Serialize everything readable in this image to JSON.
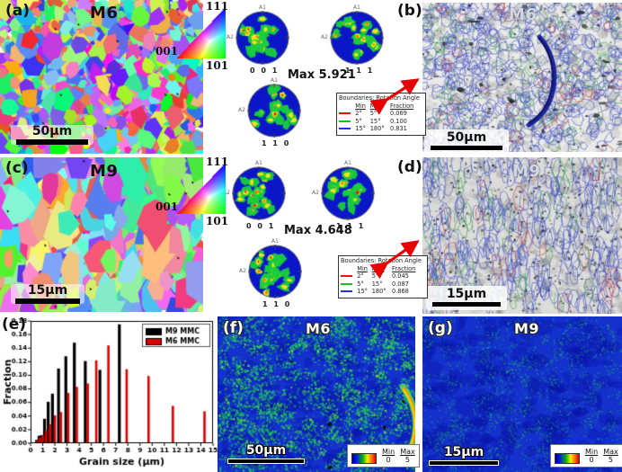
{
  "figure": {
    "panels": {
      "a": {
        "tag": "(a)",
        "sample": "M6",
        "scalebar": "50μm",
        "ipf_triangle": {
          "corner_111": "111",
          "corner_001": "001",
          "corner_101": "101"
        }
      },
      "b": {
        "tag": "(b)",
        "sample": "M6",
        "scalebar": "50μm"
      },
      "c": {
        "tag": "(c)",
        "sample": "M9",
        "scalebar": "15μm",
        "ipf_triangle": {
          "corner_111": "111",
          "corner_001": "001",
          "corner_101": "101"
        }
      },
      "d": {
        "tag": "(d)",
        "sample": "M9",
        "scalebar": "15μm"
      },
      "e": {
        "tag": "(e)"
      },
      "f": {
        "tag": "(f)",
        "sample": "M6",
        "scalebar": "50μm",
        "colorbar": {
          "min_label": "Min",
          "min_value": "0",
          "max_label": "Max",
          "max_value": "5"
        }
      },
      "g": {
        "tag": "(g)",
        "sample": "M9",
        "scalebar": "15μm",
        "colorbar": {
          "min_label": "Min",
          "min_value": "0",
          "max_label": "Max",
          "max_value": "5"
        }
      }
    },
    "pole_figures": {
      "m6": {
        "max_label": "Max 5.921",
        "pf_001": "0 0 1",
        "pf_111": "1 1 1",
        "pf_110": "1 1 0",
        "axis_top": "A1",
        "axis_left": "A2"
      },
      "m9": {
        "max_label": "Max 4.648",
        "pf_001": "0 0 1",
        "pf_111": "1 1 1",
        "pf_110": "1 1 0",
        "axis_top": "A1",
        "axis_left": "A2"
      }
    },
    "boundary_tables": {
      "m6": {
        "title": "Boundaries: Rotation Angle",
        "col_min": "Min",
        "col_max": "Max",
        "col_fraction": "Fraction",
        "rows": [
          {
            "color": "#ee1111",
            "min": "2°",
            "max": "5°",
            "fraction": "0.069"
          },
          {
            "color": "#22bb22",
            "min": "5°",
            "max": "15°",
            "fraction": "0.100"
          },
          {
            "color": "#2233dd",
            "min": "15°",
            "max": "180°",
            "fraction": "0.831"
          }
        ]
      },
      "m9": {
        "title": "Boundaries: Rotation Angle",
        "col_min": "Min",
        "col_max": "Max",
        "col_fraction": "Fraction",
        "rows": [
          {
            "color": "#ee1111",
            "min": "2°",
            "max": "5°",
            "fraction": "0.045"
          },
          {
            "color": "#22bb22",
            "min": "5°",
            "max": "15°",
            "fraction": "0.087"
          },
          {
            "color": "#2233dd",
            "min": "15°",
            "max": "180°",
            "fraction": "0.868"
          }
        ]
      }
    }
  },
  "chart_data": {
    "type": "bar",
    "title": "",
    "xlabel": "Grain size (μm)",
    "ylabel": "Fraction",
    "xlim": [
      0,
      15
    ],
    "ylim": [
      0,
      0.18
    ],
    "xtick_step": 1,
    "ytick_step": 0.02,
    "grid": false,
    "legend_position": "top-right",
    "series": [
      {
        "name": "M9 MMC",
        "color": "#000000",
        "x": [
          0.5,
          0.7,
          0.9,
          1.15,
          1.45,
          1.8,
          2.3,
          2.9,
          3.6,
          4.5,
          5.7,
          7.3
        ],
        "values": [
          0.005,
          0.011,
          0.012,
          0.036,
          0.061,
          0.073,
          0.11,
          0.128,
          0.148,
          0.121,
          0.108,
          0.175
        ]
      },
      {
        "name": "M6 MMC",
        "color": "#dd0000",
        "x": [
          0.55,
          0.77,
          1.0,
          1.28,
          1.6,
          2.0,
          2.5,
          3.1,
          3.8,
          4.7,
          5.4,
          6.4,
          7.9,
          9.7,
          11.7,
          14.3
        ],
        "values": [
          0.004,
          0.008,
          0.012,
          0.019,
          0.028,
          0.041,
          0.046,
          0.074,
          0.083,
          0.088,
          0.122,
          0.144,
          0.109,
          0.099,
          0.055,
          0.047
        ]
      }
    ]
  }
}
